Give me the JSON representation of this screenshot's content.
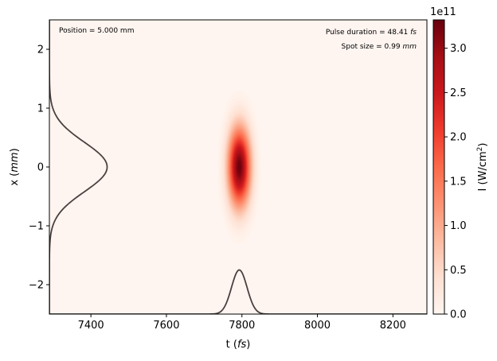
{
  "chart_data": {
    "type": "heatmap",
    "xlabel": "t (fs)",
    "xlabel_parts": {
      "text": "t (",
      "unit": "fs",
      "close": ")"
    },
    "ylabel_parts": {
      "text": "x (",
      "unit": "mm",
      "close": ")"
    },
    "xlim": [
      7290,
      8290
    ],
    "ylim": [
      -2.5,
      2.5
    ],
    "x_ticks": [
      7400,
      7600,
      7800,
      8000,
      8200
    ],
    "y_ticks": [
      -2,
      -1,
      0,
      1,
      2
    ],
    "x_tick_labels": [
      "7400",
      "7600",
      "7800",
      "8000",
      "8200"
    ],
    "y_tick_labels": [
      "−2",
      "−1",
      "0",
      "1",
      "2"
    ],
    "colormap": "Reds",
    "colorbar": {
      "label": "I (W/cm²)",
      "label_parts": {
        "text": "I (W/cm",
        "sup": "2",
        "close": ")"
      },
      "exponent_label": "1e11",
      "range": [
        0.0,
        3.32
      ],
      "ticks": [
        0.0,
        0.5,
        1.0,
        1.5,
        2.0,
        2.5,
        3.0
      ],
      "tick_labels": [
        "0.0",
        "0.5",
        "1.0",
        "1.5",
        "2.0",
        "2.5",
        "3.0"
      ],
      "scale": 100000000000.0
    },
    "pulse": {
      "center_t": 7793,
      "center_x": 0.0,
      "peak_intensity": 332000000000.0,
      "duration_fs": 48.41,
      "spot_size_mm": 0.99
    },
    "temporal_profile": {
      "center": 7793,
      "baseline_y": -2.5,
      "peak_y": -1.75
    },
    "spatial_profile": {
      "center": 0.0,
      "baseline_t": 7290,
      "peak_t": 7443
    },
    "annotations": {
      "position": "Position = 5.000 mm",
      "duration_text": "Pulse duration = 48.41 ",
      "duration_unit": "fs",
      "spot_text": "Spot size = 0.99 ",
      "spot_unit": "mm"
    }
  }
}
